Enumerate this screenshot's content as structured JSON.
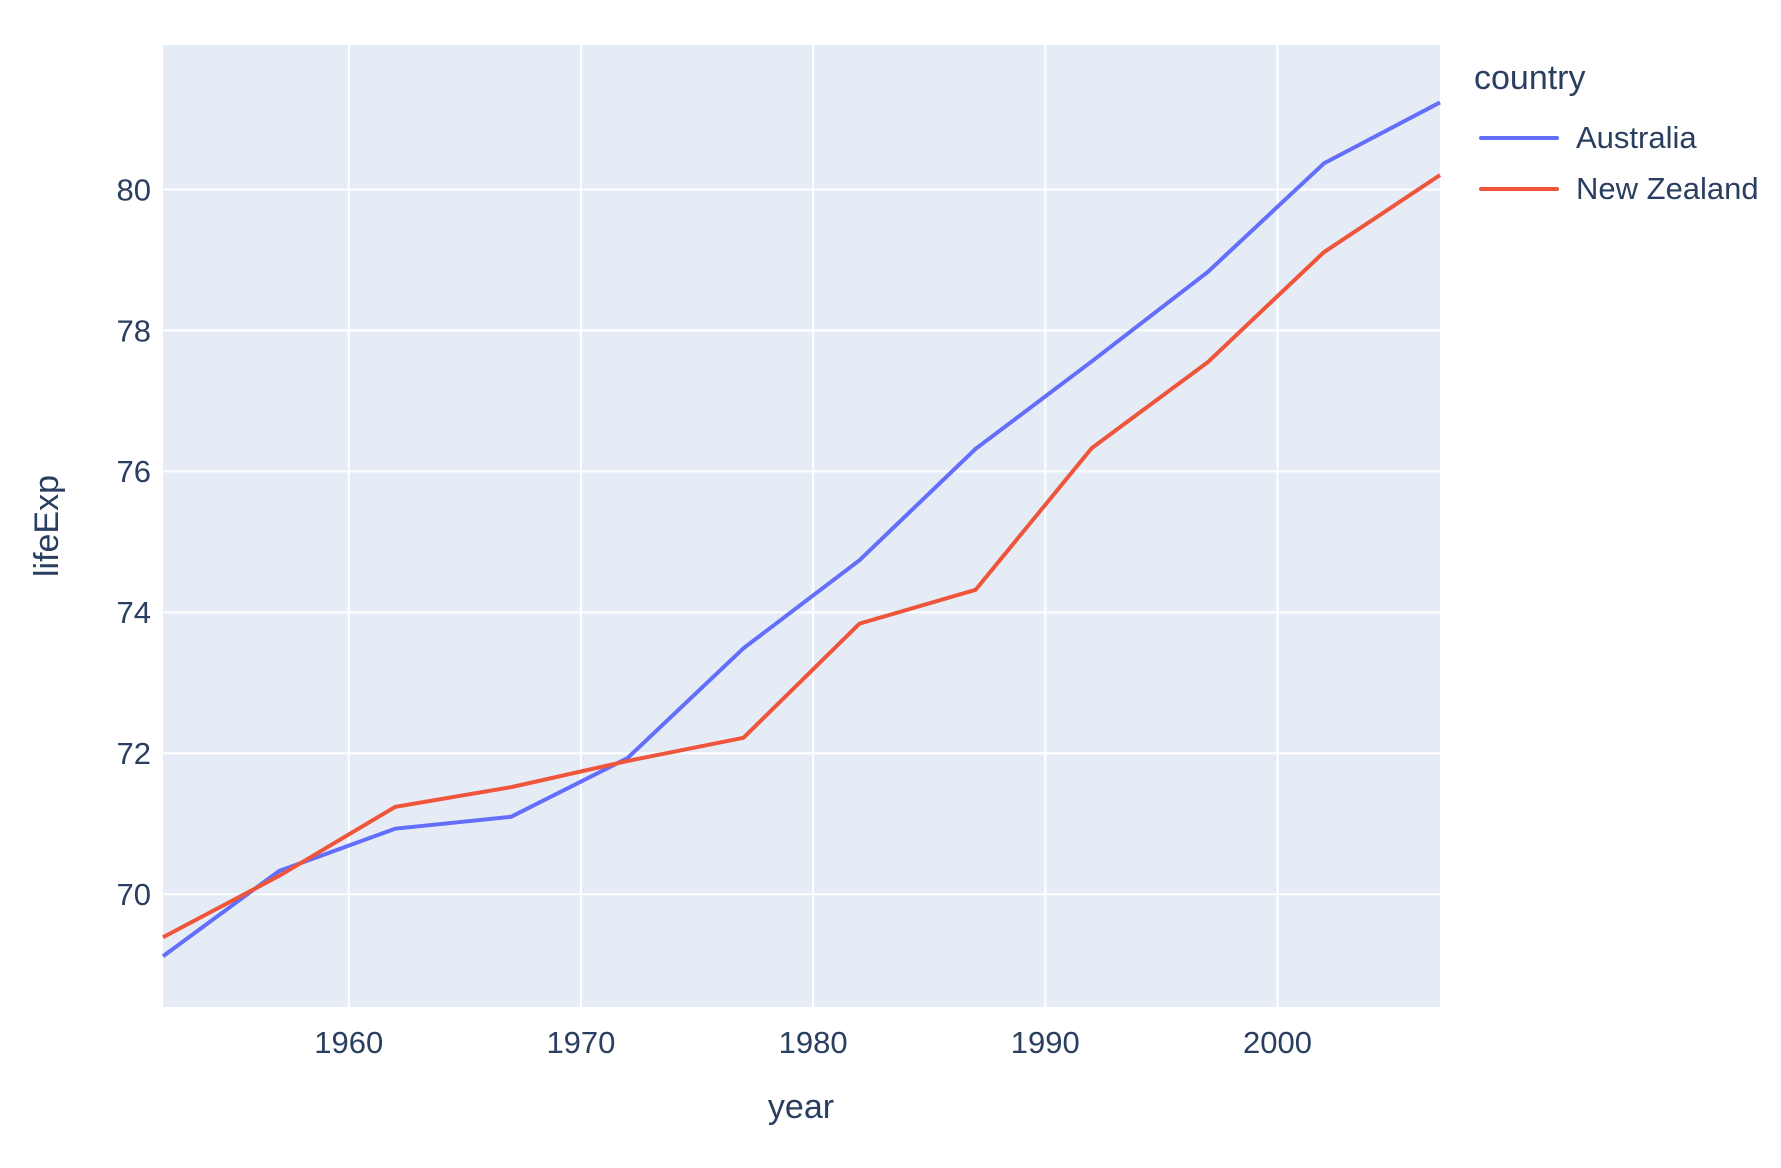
{
  "chart_data": {
    "type": "line",
    "title": "",
    "xlabel": "year",
    "ylabel": "lifeExp",
    "x": [
      1952,
      1957,
      1962,
      1967,
      1972,
      1977,
      1982,
      1987,
      1992,
      1997,
      2002,
      2007
    ],
    "series": [
      {
        "name": "Australia",
        "color": "#636EFA",
        "values": [
          69.12,
          70.33,
          70.93,
          71.1,
          71.93,
          73.49,
          74.74,
          76.32,
          77.56,
          78.83,
          80.37,
          81.235
        ]
      },
      {
        "name": "New Zealand",
        "color": "#EF553B",
        "values": [
          69.39,
          70.26,
          71.24,
          71.52,
          71.89,
          72.22,
          73.84,
          74.32,
          76.33,
          77.55,
          79.11,
          80.204
        ]
      }
    ],
    "xlim": [
      1952,
      2007
    ],
    "ylim": [
      68.4,
      82.05
    ],
    "xticks": [
      1960,
      1970,
      1980,
      1990,
      2000
    ],
    "yticks": [
      70,
      72,
      74,
      76,
      78,
      80
    ],
    "grid": true,
    "legend_position": "right",
    "legend_title": "country",
    "plot_bg_color": "#E5ECF6",
    "grid_color": "#FFFFFF",
    "text_color": "#2a3f5f",
    "line_width": 4
  }
}
